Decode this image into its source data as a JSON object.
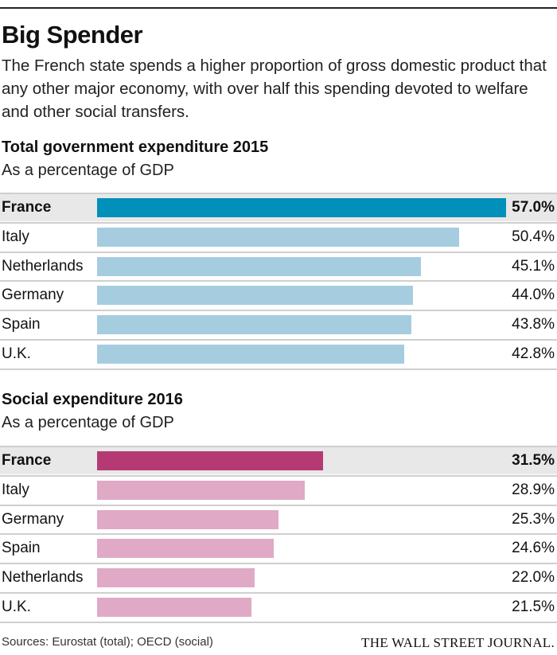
{
  "title": "Big Spender",
  "subtitle": "The French state spends a higher proportion of gross domestic product that any other major economy, with over half this spending devoted to welfare and other social transfers.",
  "chart_data": [
    {
      "type": "bar",
      "orientation": "horizontal",
      "title": "Total government expenditure 2015",
      "subtitle": "As a percentage of GDP",
      "categories": [
        "France",
        "Italy",
        "Netherlands",
        "Germany",
        "Spain",
        "U.K."
      ],
      "values": [
        57.0,
        50.4,
        45.1,
        44.0,
        43.8,
        42.8
      ],
      "labels": [
        "57.0%",
        "50.4%",
        "45.1%",
        "44.0%",
        "43.8%",
        "42.8%"
      ],
      "highlight": "France",
      "colors": {
        "highlight": "#0090b9",
        "default": "#a5cddf"
      }
    },
    {
      "type": "bar",
      "orientation": "horizontal",
      "title": "Social expenditure 2016",
      "subtitle": "As a percentage of GDP",
      "categories": [
        "France",
        "Italy",
        "Germany",
        "Spain",
        "Netherlands",
        "U.K."
      ],
      "values": [
        31.5,
        28.9,
        25.3,
        24.6,
        22.0,
        21.5
      ],
      "labels": [
        "31.5%",
        "28.9%",
        "25.3%",
        "24.6%",
        "22.0%",
        "21.5%"
      ],
      "highlight": "France",
      "colors": {
        "highlight": "#b53a73",
        "default": "#e0a9c5"
      }
    }
  ],
  "footer": {
    "sources": "Sources: Eurostat (total); OECD (social)",
    "brand": "THE WALL STREET JOURNAL."
  }
}
